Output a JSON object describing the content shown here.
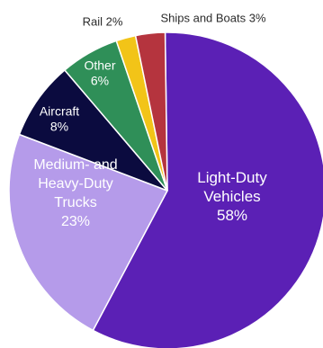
{
  "chart_data": {
    "type": "pie",
    "title": "",
    "categories": [
      "Light-Duty Vehicles",
      "Medium- and Heavy-Duty Trucks",
      "Aircraft",
      "Other",
      "Rail",
      "Ships and Boats"
    ],
    "values": [
      58,
      23,
      8,
      6,
      2,
      3
    ],
    "unit": "%",
    "slices": [
      {
        "label_lines": [
          "Light-Duty",
          "Vehicles",
          "58%"
        ],
        "value": 58,
        "color": "#5b20b5",
        "text_color": "#ffffff"
      },
      {
        "label_lines": [
          "Medium- and",
          "Heavy-Duty",
          "Trucks",
          "23%"
        ],
        "value": 23,
        "color": "#b59bea",
        "text_color": "#ffffff"
      },
      {
        "label_lines": [
          "Aircraft",
          "8%"
        ],
        "value": 8,
        "color": "#0b0b3f",
        "text_color": "#ffffff"
      },
      {
        "label_lines": [
          "Other",
          "6%"
        ],
        "value": 6,
        "color": "#2f8f58",
        "text_color": "#ffffff"
      },
      {
        "label_lines": [
          "Rail 2%"
        ],
        "value": 2,
        "color": "#f2c418",
        "text_color": "#2b2b2b"
      },
      {
        "label_lines": [
          "Ships and Boats 3%"
        ],
        "value": 3,
        "color": "#b5343e",
        "text_color": "#2b2b2b"
      }
    ],
    "legend": "none",
    "grid": false
  }
}
